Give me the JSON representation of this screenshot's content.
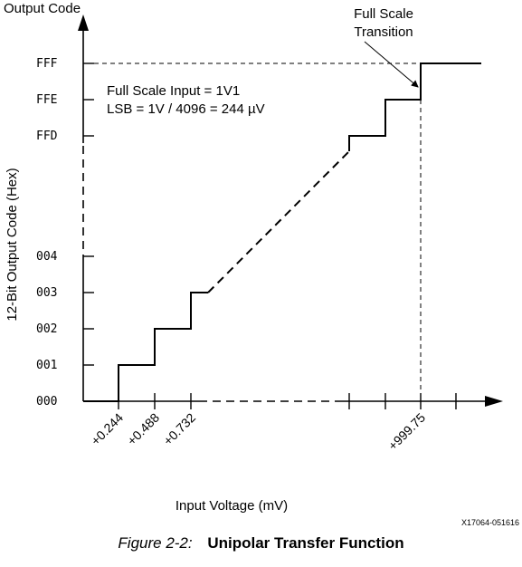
{
  "figure": {
    "output_code_label": "Output Code",
    "y_axis_title": "12-Bit Output Code (Hex)",
    "x_axis_title": "Input Voltage (mV)",
    "y_codes": [
      "FFF",
      "FFE",
      "FFD",
      "004",
      "003",
      "002",
      "001",
      "000"
    ],
    "x_ticks": [
      "+0.244",
      "+0.488",
      "+0.732",
      "+999.75"
    ],
    "annotation": {
      "line1": "Full Scale Input = 1V1",
      "line2": "LSB = 1V / 4096 = 244 µV"
    },
    "callout": {
      "line1": "Full Scale",
      "line2": "Transition"
    },
    "figure_id": "X17064-051616",
    "caption": {
      "number": "Figure 2-2:",
      "title": "Unipolar Transfer Function"
    }
  }
}
